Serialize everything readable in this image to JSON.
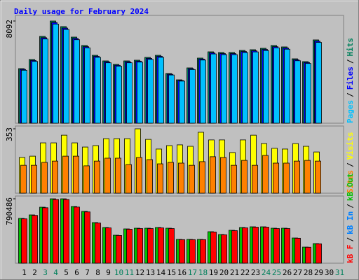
{
  "legend_separator": "/",
  "chart_data": [
    {
      "type": "bar",
      "title": "Daily usage for February 2024",
      "ylim": [
        0,
        8092
      ],
      "yticks": [
        8092
      ],
      "series": [
        {
          "name": "Pages",
          "color": "#00c0ff",
          "values": [
            4193,
            4893,
            6667,
            7849,
            7420,
            6612,
            5967,
            5215,
            4785,
            4516,
            4785,
            4838,
            5054,
            5215,
            3817,
            3333,
            4248,
            5000,
            5483,
            5430,
            5430,
            5591,
            5645,
            5752,
            5967,
            5860,
            4946,
            4731,
            6398,
            null,
            null
          ]
        },
        {
          "name": "Files",
          "color": "#0000ff",
          "values": [
            4258,
            4968,
            6770,
            7971,
            7534,
            6715,
            6060,
            5295,
            4859,
            4586,
            4859,
            4913,
            5132,
            5295,
            3876,
            3384,
            4313,
            5078,
            5568,
            5514,
            5514,
            5678,
            5733,
            5841,
            6060,
            5950,
            5023,
            4804,
            6497,
            null,
            null
          ]
        },
        {
          "name": "Hits",
          "color": "#00805c",
          "values": [
            4323,
            5044,
            6873,
            8092,
            7649,
            6817,
            6152,
            5376,
            4933,
            4656,
            4933,
            4988,
            5210,
            5376,
            3935,
            3436,
            4379,
            5155,
            5653,
            5598,
            5598,
            5764,
            5820,
            5930,
            6152,
            6041,
            5099,
            4877,
            6596,
            null,
            null
          ]
        }
      ]
    },
    {
      "type": "bar",
      "ylim": [
        0,
        353
      ],
      "yticks": [
        353
      ],
      "series": [
        {
          "name": "Sites",
          "color": "#ff8000",
          "values": [
            153,
            153,
            169,
            176,
            203,
            203,
            150,
            176,
            192,
            192,
            157,
            196,
            184,
            161,
            169,
            165,
            153,
            173,
            200,
            196,
            153,
            180,
            153,
            207,
            165,
            165,
            176,
            180,
            176,
            null,
            null
          ]
        },
        {
          "name": "Visits",
          "color": "#ffff00",
          "values": [
            196,
            203,
            276,
            276,
            318,
            276,
            253,
            261,
            299,
            299,
            299,
            353,
            295,
            242,
            261,
            265,
            257,
            334,
            292,
            292,
            223,
            292,
            318,
            272,
            246,
            242,
            272,
            257,
            226,
            null,
            null
          ]
        }
      ]
    },
    {
      "type": "bar",
      "ylim": [
        0,
        790486
      ],
      "yticks": [
        790486
      ],
      "categories": [
        "1",
        "2",
        "3",
        "4",
        "5",
        "6",
        "7",
        "8",
        "9",
        "10",
        "11",
        "12",
        "13",
        "14",
        "15",
        "16",
        "17",
        "18",
        "19",
        "20",
        "21",
        "22",
        "23",
        "24",
        "25",
        "26",
        "27",
        "28",
        "29",
        "30",
        "31"
      ],
      "category_colors": [
        "#000000",
        "#000000",
        "#00805c",
        "#00805c",
        "#000000",
        "#000000",
        "#000000",
        "#000000",
        "#000000",
        "#00805c",
        "#00805c",
        "#000000",
        "#000000",
        "#000000",
        "#000000",
        "#000000",
        "#00805c",
        "#00805c",
        "#000000",
        "#000000",
        "#000000",
        "#000000",
        "#000000",
        "#00805c",
        "#00805c",
        "#000000",
        "#000000",
        "#000000",
        "#000000",
        "#000000",
        "#00805c"
      ],
      "series": [
        {
          "name": "kB F",
          "color": "#ff0000",
          "values": [
            544404,
            586936,
            680505,
            782581,
            782581,
            689011,
            629468,
            493367,
            433822,
            340253,
            416810,
            425316,
            425316,
            433822,
            425316,
            289215,
            289215,
            289215,
            382784,
            348759,
            399797,
            433822,
            442329,
            442329,
            425316,
            425316,
            306228,
            195646,
            238177,
            null,
            null
          ]
        },
        {
          "name": "kB In",
          "color": "#0080ff",
          "values": [
            0,
            0,
            0,
            0,
            0,
            0,
            0,
            0,
            0,
            0,
            0,
            0,
            0,
            0,
            0,
            0,
            0,
            0,
            0,
            0,
            0,
            0,
            0,
            0,
            0,
            0,
            0,
            0,
            0,
            null,
            null
          ]
        },
        {
          "name": "kB Out",
          "color": "#00c000",
          "values": [
            549903,
            592865,
            687379,
            790486,
            790486,
            695971,
            635826,
            498350,
            438204,
            343690,
            421020,
            429612,
            429612,
            438204,
            429612,
            292136,
            292136,
            292136,
            386651,
            352282,
            403835,
            438204,
            446797,
            446797,
            429612,
            429612,
            309321,
            197622,
            240583,
            null,
            null
          ]
        }
      ]
    }
  ]
}
